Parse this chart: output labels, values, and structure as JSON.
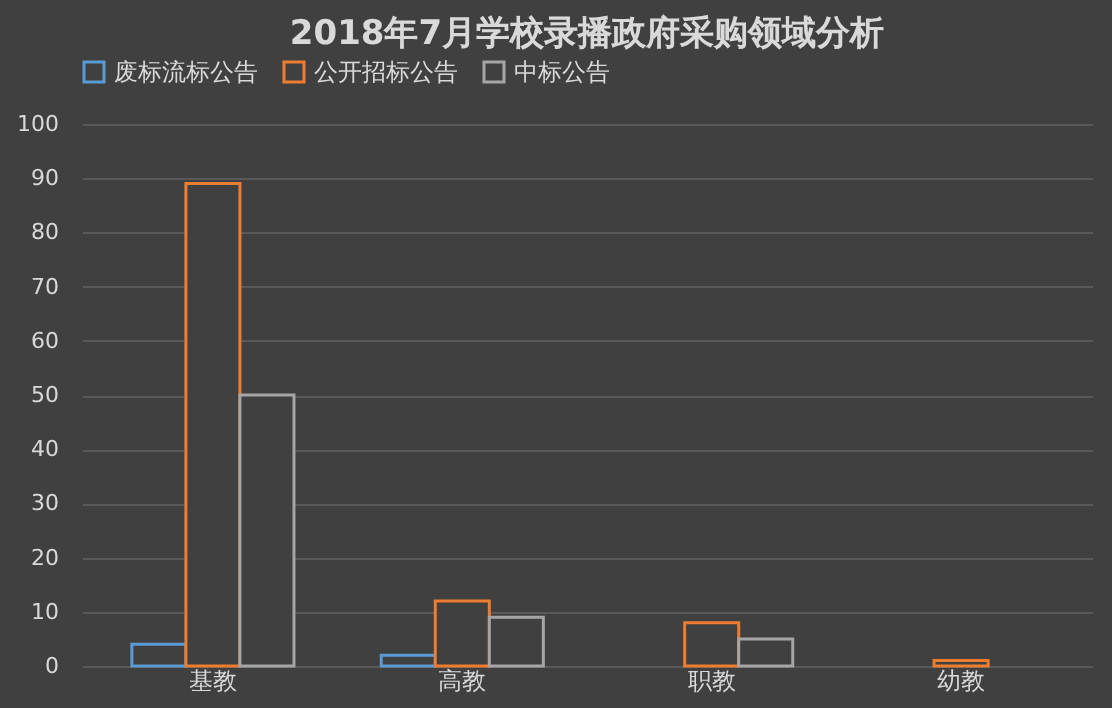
{
  "chart_data": {
    "type": "bar",
    "title": "2018年7月学校录播政府采购领域分析",
    "categories": [
      "基教",
      "高教",
      "职教",
      "幼教"
    ],
    "series": [
      {
        "name": "废标流标公告",
        "color": "#5b9bd5",
        "values": [
          4,
          2,
          null,
          null
        ]
      },
      {
        "name": "公开招标公告",
        "color": "#ed7d31",
        "values": [
          89,
          12,
          8,
          1
        ]
      },
      {
        "name": "中标公告",
        "color": "#a5a5a5",
        "values": [
          50,
          9,
          5,
          null
        ]
      }
    ],
    "ylim": [
      0,
      100
    ],
    "yticks": [
      0,
      10,
      20,
      30,
      40,
      50,
      60,
      70,
      80,
      90,
      100
    ],
    "grid": "y",
    "legend": "top"
  }
}
